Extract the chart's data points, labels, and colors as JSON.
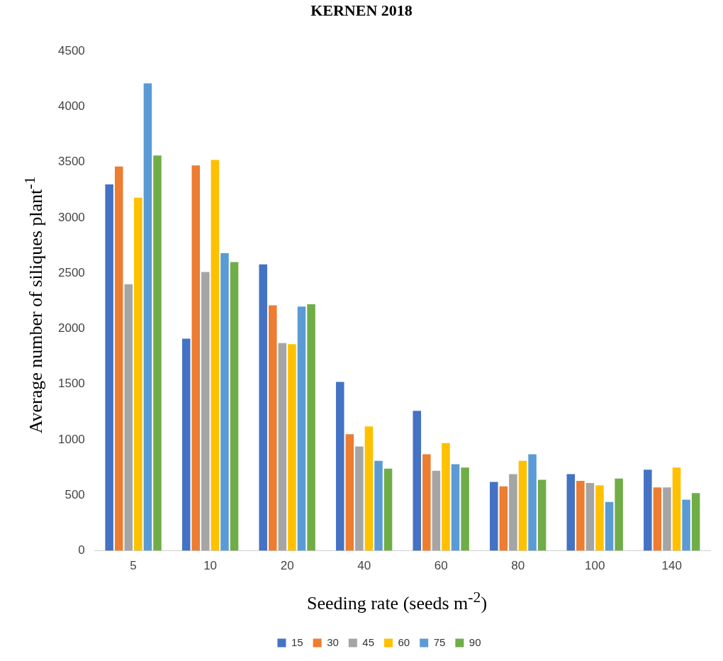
{
  "chart_data": {
    "type": "bar",
    "title": "KERNEN 2018",
    "xlabel": "Seeding rate (seeds m$^{-2}$)",
    "ylabel": "Average number of siliques plant$^{-1}$",
    "categories": [
      "5",
      "10",
      "20",
      "40",
      "60",
      "80",
      "100",
      "140"
    ],
    "series": [
      {
        "name": "15",
        "color": "#4472c4",
        "values": [
          3300,
          1910,
          2580,
          1520,
          1260,
          620,
          690,
          730
        ]
      },
      {
        "name": "30",
        "color": "#ed7d31",
        "values": [
          3460,
          3470,
          2210,
          1050,
          870,
          580,
          630,
          570
        ]
      },
      {
        "name": "45",
        "color": "#a5a5a5",
        "values": [
          2400,
          2510,
          1870,
          940,
          720,
          690,
          610,
          570
        ]
      },
      {
        "name": "60",
        "color": "#ffc000",
        "values": [
          3180,
          3520,
          1860,
          1120,
          970,
          810,
          590,
          750
        ]
      },
      {
        "name": "75",
        "color": "#5b9bd5",
        "values": [
          4210,
          2680,
          2200,
          810,
          780,
          870,
          440,
          460
        ]
      },
      {
        "name": "90",
        "color": "#70ad47",
        "values": [
          3560,
          2600,
          2220,
          740,
          750,
          640,
          650,
          520
        ]
      }
    ],
    "ylim": [
      0,
      4500
    ],
    "yticks": [
      0,
      500,
      1000,
      1500,
      2000,
      2500,
      3000,
      3500,
      4000,
      4500
    ],
    "grid": false,
    "legend": "bottom"
  }
}
